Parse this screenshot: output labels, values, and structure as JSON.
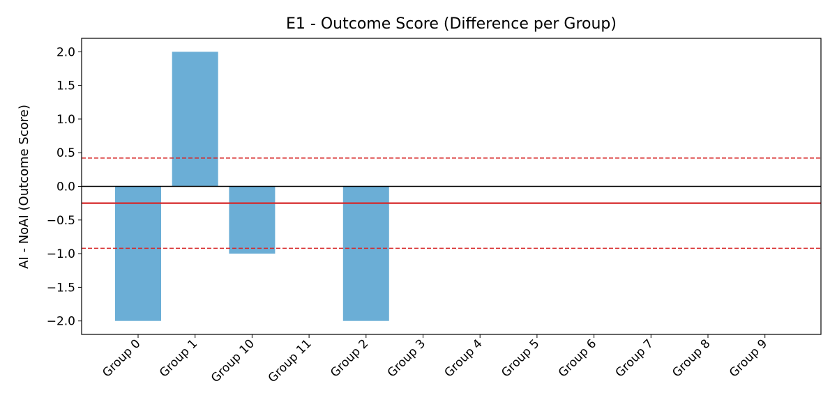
{
  "chart_data": {
    "type": "bar",
    "title": "E1 - Outcome Score (Difference per Group)",
    "xlabel": "",
    "ylabel": "AI - NoAI (Outcome Score)",
    "categories": [
      "Group 0",
      "Group 1",
      "Group 10",
      "Group 11",
      "Group 2",
      "Group 3",
      "Group 4",
      "Group 5",
      "Group 6",
      "Group 7",
      "Group 8",
      "Group 9"
    ],
    "values": [
      -2.0,
      2.0,
      -1.0,
      null,
      -2.0,
      null,
      null,
      null,
      null,
      null,
      null,
      null
    ],
    "ylim": [
      -2.2,
      2.2
    ],
    "yticks": [
      -2.0,
      -1.5,
      -1.0,
      -0.5,
      0.0,
      0.5,
      1.0,
      1.5,
      2.0
    ],
    "ytick_labels": [
      "−2.0",
      "−1.5",
      "−1.0",
      "−0.5",
      "0.0",
      "0.5",
      "1.0",
      "1.5",
      "2.0"
    ],
    "grid": false,
    "bar_color": "#6baed6",
    "reference_lines": [
      {
        "role": "zero",
        "y": 0.0,
        "color": "#000000",
        "style": "solid"
      },
      {
        "role": "mean",
        "y": -0.25,
        "color": "#d62728",
        "style": "solid"
      },
      {
        "role": "upper-band",
        "y": 0.42,
        "color": "#d62728",
        "style": "dashed"
      },
      {
        "role": "lower-band",
        "y": -0.92,
        "color": "#d62728",
        "style": "dashed"
      }
    ]
  }
}
